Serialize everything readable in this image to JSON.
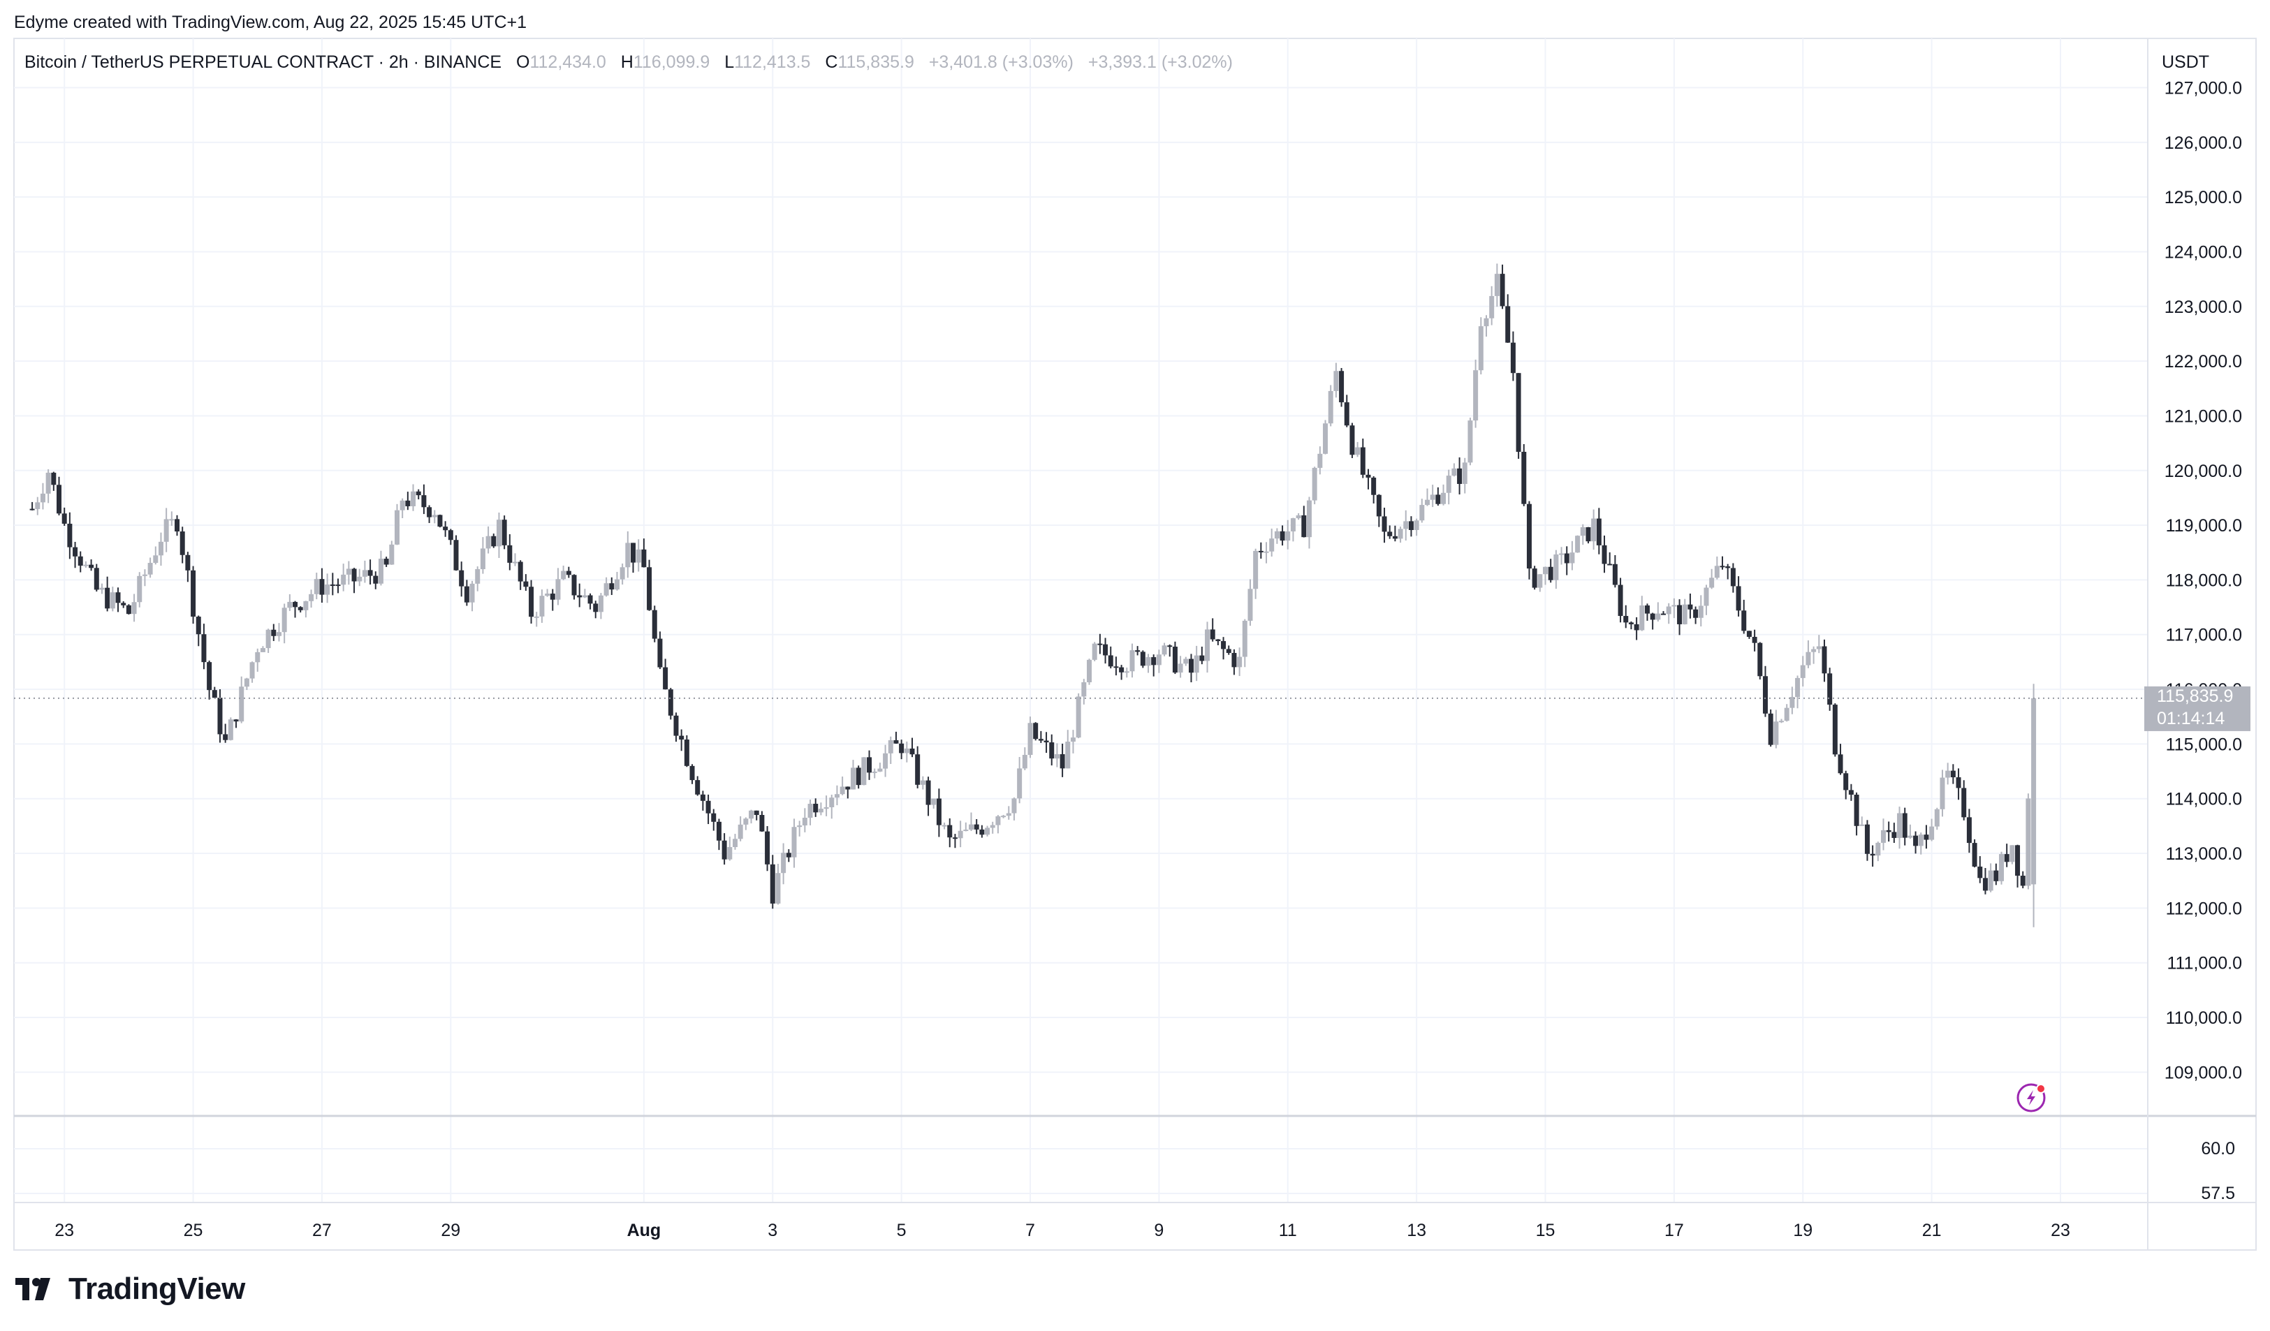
{
  "header": {
    "attribution": "Edyme created with TradingView.com, Aug 22, 2025 15:45 UTC+1"
  },
  "legend": {
    "symbol": "Bitcoin / TetherUS PERPETUAL CONTRACT · 2h · BINANCE",
    "open_label": "O",
    "open": "112,434.0",
    "high_label": "H",
    "high": "116,099.9",
    "low_label": "L",
    "low": "112,413.5",
    "close_label": "C",
    "close": "115,835.9",
    "change": "+3,401.8 (+3.03%)",
    "change2": "+3,393.1 (+3.02%)"
  },
  "currency": "USDT",
  "price_tag": {
    "price": "115,835.9",
    "countdown": "01:14:14"
  },
  "brand": "TradingView",
  "colors": {
    "down_candle": "#2a2e39",
    "up_candle": "#b2b5be",
    "grid": "#f0f3fa",
    "tag_bg": "#b2b5be",
    "accent_icon": "#9c27b0"
  },
  "icons": {
    "lightning_badge": "lightning-icon",
    "brand_logo": "tradingview-logo-icon"
  },
  "chart_data": {
    "type": "candlestick",
    "title": "Bitcoin / TetherUS PERPETUAL CONTRACT · 2h · BINANCE",
    "x_tick_labels": [
      "23",
      "25",
      "27",
      "29",
      "Aug",
      "3",
      "5",
      "7",
      "9",
      "11",
      "13",
      "15",
      "17",
      "19",
      "21",
      "23"
    ],
    "y_tick_labels": [
      "109,000.0",
      "110,000.0",
      "111,000.0",
      "112,000.0",
      "113,000.0",
      "114,000.0",
      "115,000.0",
      "116,000.0",
      "117,000.0",
      "118,000.0",
      "119,000.0",
      "120,000.0",
      "121,000.0",
      "122,000.0",
      "123,000.0",
      "124,000.0",
      "125,000.0",
      "126,000.0",
      "127,000.0"
    ],
    "y_ticks": [
      109000,
      110000,
      111000,
      112000,
      113000,
      114000,
      115000,
      116000,
      117000,
      118000,
      119000,
      120000,
      121000,
      122000,
      123000,
      124000,
      125000,
      126000,
      127000
    ],
    "ylim": [
      108200,
      127900
    ],
    "x_start": "Jul 22",
    "x_end": "Aug 23",
    "indicator_y_tick_labels": [
      "60.0",
      "57.5"
    ],
    "last_price": 115835.9,
    "grid": true,
    "anchors": [
      {
        "x": "2025-07-22T12:00",
        "y": 119300
      },
      {
        "x": "2025-07-22T18:00",
        "y": 120000
      },
      {
        "x": "2025-07-23T00:00",
        "y": 119000
      },
      {
        "x": "2025-07-23T12:00",
        "y": 117800
      },
      {
        "x": "2025-07-24T00:00",
        "y": 117400
      },
      {
        "x": "2025-07-24T12:00",
        "y": 118800
      },
      {
        "x": "2025-07-24T18:00",
        "y": 119100
      },
      {
        "x": "2025-07-25T06:00",
        "y": 116000
      },
      {
        "x": "2025-07-25T12:00",
        "y": 115000
      },
      {
        "x": "2025-07-26T00:00",
        "y": 116800
      },
      {
        "x": "2025-07-26T12:00",
        "y": 117500
      },
      {
        "x": "2025-07-27T00:00",
        "y": 117900
      },
      {
        "x": "2025-07-27T12:00",
        "y": 118000
      },
      {
        "x": "2025-07-28T00:00",
        "y": 118200
      },
      {
        "x": "2025-07-28T06:00",
        "y": 119500
      },
      {
        "x": "2025-07-28T18:00",
        "y": 119300
      },
      {
        "x": "2025-07-29T06:00",
        "y": 117800
      },
      {
        "x": "2025-07-29T18:00",
        "y": 119000
      },
      {
        "x": "2025-07-30T06:00",
        "y": 117400
      },
      {
        "x": "2025-07-30T18:00",
        "y": 118000
      },
      {
        "x": "2025-07-31T06:00",
        "y": 117500
      },
      {
        "x": "2025-07-31T18:00",
        "y": 118600
      },
      {
        "x": "2025-08-01T00:00",
        "y": 118200
      },
      {
        "x": "2025-08-01T06:00",
        "y": 116200
      },
      {
        "x": "2025-08-01T18:00",
        "y": 114500
      },
      {
        "x": "2025-08-02T06:00",
        "y": 113000
      },
      {
        "x": "2025-08-02T18:00",
        "y": 113800
      },
      {
        "x": "2025-08-03T00:00",
        "y": 112300
      },
      {
        "x": "2025-08-03T12:00",
        "y": 113800
      },
      {
        "x": "2025-08-04T00:00",
        "y": 114200
      },
      {
        "x": "2025-08-04T12:00",
        "y": 114600
      },
      {
        "x": "2025-08-05T00:00",
        "y": 115000
      },
      {
        "x": "2025-08-05T18:00",
        "y": 113200
      },
      {
        "x": "2025-08-06T06:00",
        "y": 113500
      },
      {
        "x": "2025-08-06T18:00",
        "y": 114000
      },
      {
        "x": "2025-08-07T00:00",
        "y": 115200
      },
      {
        "x": "2025-08-07T12:00",
        "y": 114600
      },
      {
        "x": "2025-08-08T00:00",
        "y": 116700
      },
      {
        "x": "2025-08-08T12:00",
        "y": 116500
      },
      {
        "x": "2025-08-09T00:00",
        "y": 116700
      },
      {
        "x": "2025-08-09T12:00",
        "y": 116300
      },
      {
        "x": "2025-08-09T18:00",
        "y": 116900
      },
      {
        "x": "2025-08-10T06:00",
        "y": 116500
      },
      {
        "x": "2025-08-10T12:00",
        "y": 118500
      },
      {
        "x": "2025-08-10T18:00",
        "y": 118800
      },
      {
        "x": "2025-08-11T06:00",
        "y": 119000
      },
      {
        "x": "2025-08-11T18:00",
        "y": 121800
      },
      {
        "x": "2025-08-12T00:00",
        "y": 120500
      },
      {
        "x": "2025-08-12T12:00",
        "y": 118800
      },
      {
        "x": "2025-08-13T00:00",
        "y": 119200
      },
      {
        "x": "2025-08-13T12:00",
        "y": 119800
      },
      {
        "x": "2025-08-13T18:00",
        "y": 120000
      },
      {
        "x": "2025-08-14T00:00",
        "y": 122800
      },
      {
        "x": "2025-08-14T06:00",
        "y": 123400
      },
      {
        "x": "2025-08-14T12:00",
        "y": 121800
      },
      {
        "x": "2025-08-14T18:00",
        "y": 118000
      },
      {
        "x": "2025-08-15T06:00",
        "y": 118300
      },
      {
        "x": "2025-08-15T18:00",
        "y": 119000
      },
      {
        "x": "2025-08-16T06:00",
        "y": 117200
      },
      {
        "x": "2025-08-16T18:00",
        "y": 117500
      },
      {
        "x": "2025-08-17T06:00",
        "y": 117300
      },
      {
        "x": "2025-08-17T18:00",
        "y": 118300
      },
      {
        "x": "2025-08-18T06:00",
        "y": 116700
      },
      {
        "x": "2025-08-18T12:00",
        "y": 115200
      },
      {
        "x": "2025-08-19T00:00",
        "y": 116400
      },
      {
        "x": "2025-08-19T06:00",
        "y": 116800
      },
      {
        "x": "2025-08-19T12:00",
        "y": 115000
      },
      {
        "x": "2025-08-20T00:00",
        "y": 113000
      },
      {
        "x": "2025-08-20T12:00",
        "y": 113600
      },
      {
        "x": "2025-08-20T18:00",
        "y": 113000
      },
      {
        "x": "2025-08-21T06:00",
        "y": 114400
      },
      {
        "x": "2025-08-21T12:00",
        "y": 113800
      },
      {
        "x": "2025-08-21T18:00",
        "y": 112500
      },
      {
        "x": "2025-08-22T00:00",
        "y": 112600
      },
      {
        "x": "2025-08-22T06:00",
        "y": 113200
      },
      {
        "x": "2025-08-22T10:00",
        "y": 112400
      },
      {
        "x": "2025-08-22T14:00",
        "y": 115835.9
      }
    ]
  }
}
